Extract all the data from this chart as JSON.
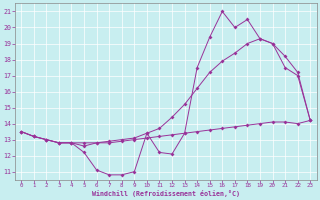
{
  "xlabel": "Windchill (Refroidissement éolien,°C)",
  "background_color": "#c8eef0",
  "line_color": "#993399",
  "grid_color": "#ffffff",
  "xlim": [
    -0.5,
    23.5
  ],
  "ylim": [
    10.5,
    21.5
  ],
  "yticks": [
    11,
    12,
    13,
    14,
    15,
    16,
    17,
    18,
    19,
    20,
    21
  ],
  "xticks": [
    0,
    1,
    2,
    3,
    4,
    5,
    6,
    7,
    8,
    9,
    10,
    11,
    12,
    13,
    14,
    15,
    16,
    17,
    18,
    19,
    20,
    21,
    22,
    23
  ],
  "hours": [
    0,
    1,
    2,
    3,
    4,
    5,
    6,
    7,
    8,
    9,
    10,
    11,
    12,
    13,
    14,
    15,
    16,
    17,
    18,
    19,
    20,
    21,
    22,
    23
  ],
  "line1": [
    13.5,
    13.2,
    13.0,
    12.8,
    12.8,
    12.2,
    11.1,
    10.8,
    10.8,
    11.0,
    13.4,
    12.2,
    12.1,
    13.4,
    17.5,
    19.4,
    21.0,
    20.0,
    20.5,
    19.3,
    19.0,
    17.5,
    17.0,
    14.2
  ],
  "line2": [
    13.5,
    13.2,
    13.0,
    12.8,
    12.8,
    12.8,
    12.8,
    12.8,
    12.9,
    13.0,
    13.1,
    13.2,
    13.3,
    13.4,
    13.5,
    13.6,
    13.7,
    13.8,
    13.9,
    14.0,
    14.1,
    14.1,
    14.0,
    14.2
  ],
  "line3": [
    13.5,
    13.2,
    13.0,
    12.8,
    12.8,
    12.6,
    12.8,
    12.9,
    13.0,
    13.1,
    13.4,
    13.7,
    14.4,
    15.2,
    16.2,
    17.2,
    17.9,
    18.4,
    19.0,
    19.3,
    19.0,
    18.2,
    17.2,
    14.2
  ]
}
